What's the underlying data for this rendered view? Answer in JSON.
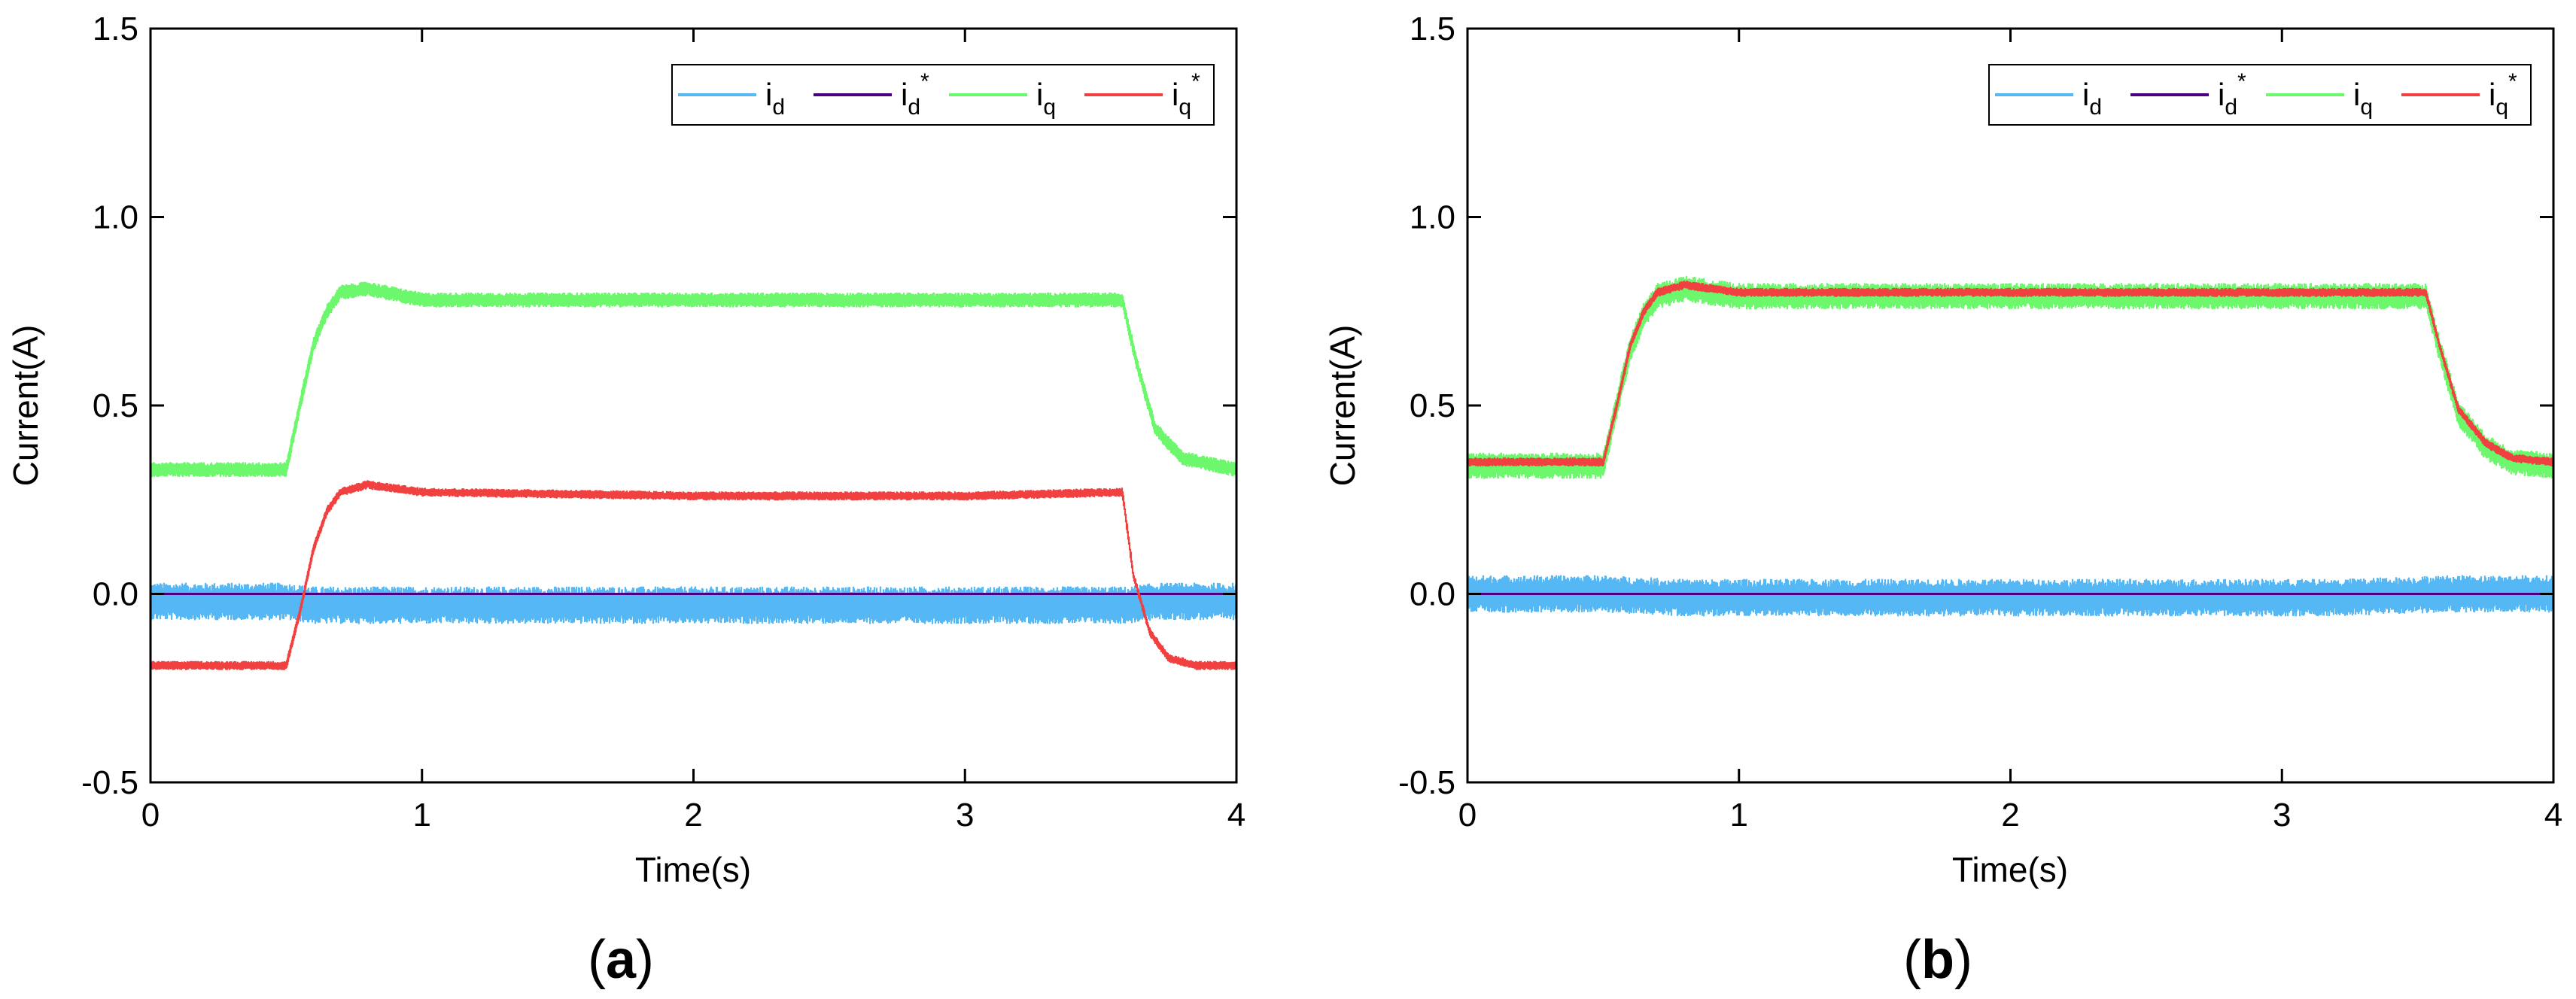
{
  "chart_data": [
    {
      "type": "line",
      "panel_label": "a",
      "xlabel": "Time(s)",
      "ylabel": "Current(A)",
      "xlim": [
        0,
        4
      ],
      "ylim": [
        -0.5,
        1.5
      ],
      "xticks": [
        "0",
        "1",
        "2",
        "3",
        "4"
      ],
      "yticks": [
        "-0.5",
        "0.0",
        "0.5",
        "1.0",
        "1.5"
      ],
      "legend": {
        "placement": "top-right",
        "entries": [
          {
            "base": "i",
            "sub": "d",
            "sup": "",
            "color": "#55B8F5"
          },
          {
            "base": "i",
            "sub": "d",
            "sup": "*",
            "color": "#4B0082"
          },
          {
            "base": "i",
            "sub": "q",
            "sup": "",
            "color": "#6CF76C"
          },
          {
            "base": "i",
            "sub": "q",
            "sup": "*",
            "color": "#F04040"
          }
        ]
      },
      "series": [
        {
          "name": "i_d",
          "color": "#55B8F5",
          "noise_band": 0.05,
          "x": [
            0,
            0.5,
            0.6,
            0.8,
            1.0,
            2.0,
            3.0,
            3.6,
            3.7,
            4.0
          ],
          "y": [
            -0.02,
            -0.02,
            -0.03,
            -0.03,
            -0.03,
            -0.03,
            -0.03,
            -0.03,
            -0.02,
            -0.02
          ]
        },
        {
          "name": "i_d*",
          "color": "#4B0082",
          "noise_band": 0,
          "x": [
            0,
            4
          ],
          "y": [
            0.0,
            0.0
          ]
        },
        {
          "name": "i_q",
          "color": "#6CF76C",
          "noise_band": 0.02,
          "x": [
            0,
            0.5,
            0.55,
            0.6,
            0.65,
            0.7,
            0.8,
            1.0,
            2.0,
            3.0,
            3.58,
            3.63,
            3.7,
            3.8,
            4.0
          ],
          "y": [
            0.33,
            0.33,
            0.5,
            0.66,
            0.75,
            0.8,
            0.81,
            0.78,
            0.78,
            0.78,
            0.78,
            0.62,
            0.44,
            0.36,
            0.33
          ]
        },
        {
          "name": "i_q*",
          "color": "#F04040",
          "noise_band": 0.012,
          "x": [
            0,
            0.5,
            0.55,
            0.6,
            0.65,
            0.7,
            0.8,
            1.0,
            2.0,
            3.0,
            3.58,
            3.62,
            3.68,
            3.75,
            3.85,
            4.0
          ],
          "y": [
            -0.19,
            -0.19,
            -0.05,
            0.12,
            0.22,
            0.27,
            0.29,
            0.27,
            0.26,
            0.26,
            0.27,
            0.05,
            -0.1,
            -0.17,
            -0.19,
            -0.19
          ]
        }
      ]
    },
    {
      "type": "line",
      "panel_label": "b",
      "xlabel": "Time(s)",
      "ylabel": "Current(A)",
      "xlim": [
        0,
        4
      ],
      "ylim": [
        -0.5,
        1.5
      ],
      "xticks": [
        "0",
        "1",
        "2",
        "3",
        "4"
      ],
      "yticks": [
        "-0.5",
        "0.0",
        "0.5",
        "1.0",
        "1.5"
      ],
      "legend": {
        "placement": "top-right",
        "entries": [
          {
            "base": "i",
            "sub": "d",
            "sup": "",
            "color": "#55B8F5"
          },
          {
            "base": "i",
            "sub": "d",
            "sup": "*",
            "color": "#4B0082"
          },
          {
            "base": "i",
            "sub": "q",
            "sup": "",
            "color": "#6CF76C"
          },
          {
            "base": "i",
            "sub": "q",
            "sup": "*",
            "color": "#F04040"
          }
        ]
      },
      "series": [
        {
          "name": "i_d",
          "color": "#55B8F5",
          "noise_band": 0.05,
          "x": [
            0,
            0.5,
            0.8,
            1.5,
            2.5,
            3.2,
            3.6,
            4.0
          ],
          "y": [
            0.0,
            0.0,
            -0.01,
            -0.01,
            -0.01,
            -0.01,
            0.0,
            0.0
          ]
        },
        {
          "name": "i_d*",
          "color": "#4B0082",
          "noise_band": 0,
          "x": [
            0,
            4
          ],
          "y": [
            0.0,
            0.0
          ]
        },
        {
          "name": "i_q",
          "color": "#6CF76C",
          "noise_band": 0.035,
          "x": [
            0,
            0.5,
            0.55,
            0.6,
            0.65,
            0.7,
            0.8,
            1.0,
            2.0,
            3.0,
            3.53,
            3.58,
            3.65,
            3.75,
            3.85,
            4.0
          ],
          "y": [
            0.34,
            0.34,
            0.5,
            0.65,
            0.74,
            0.79,
            0.81,
            0.79,
            0.79,
            0.79,
            0.79,
            0.65,
            0.48,
            0.39,
            0.35,
            0.34
          ]
        },
        {
          "name": "i_q*",
          "color": "#F04040",
          "noise_band": 0.012,
          "x": [
            0,
            0.5,
            0.55,
            0.6,
            0.65,
            0.7,
            0.8,
            1.0,
            2.0,
            3.0,
            3.53,
            3.58,
            3.65,
            3.75,
            3.85,
            4.0
          ],
          "y": [
            0.35,
            0.35,
            0.5,
            0.66,
            0.75,
            0.8,
            0.82,
            0.8,
            0.8,
            0.8,
            0.8,
            0.66,
            0.49,
            0.4,
            0.36,
            0.35
          ]
        }
      ]
    }
  ]
}
